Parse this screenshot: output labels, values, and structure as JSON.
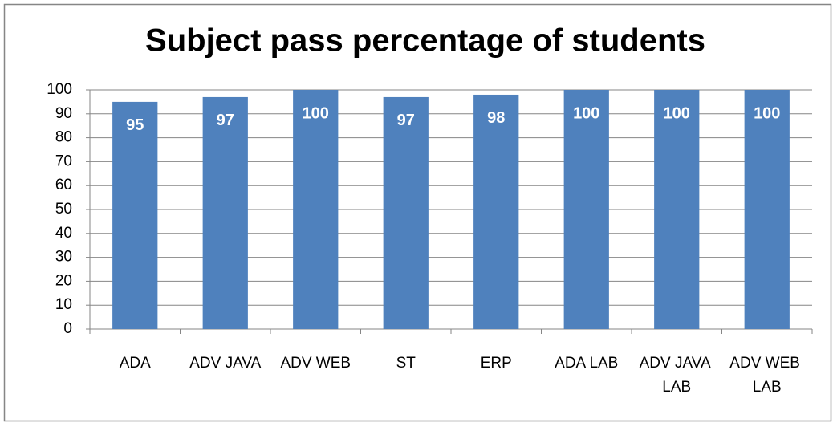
{
  "chart_data": {
    "type": "bar",
    "title": "Subject pass percentage of students",
    "categories": [
      "ADA",
      "ADV JAVA",
      "ADV WEB",
      "ST",
      "ERP",
      "ADA LAB",
      "ADV JAVA LAB",
      "ADV WEB LAB"
    ],
    "values": [
      95,
      97,
      100,
      97,
      98,
      100,
      100,
      100
    ],
    "color": "#4f81bd",
    "ylim": [
      0,
      100
    ],
    "yticks": [
      0,
      10,
      20,
      30,
      40,
      50,
      60,
      70,
      80,
      90,
      100
    ],
    "grid": true,
    "data_labels": true
  }
}
